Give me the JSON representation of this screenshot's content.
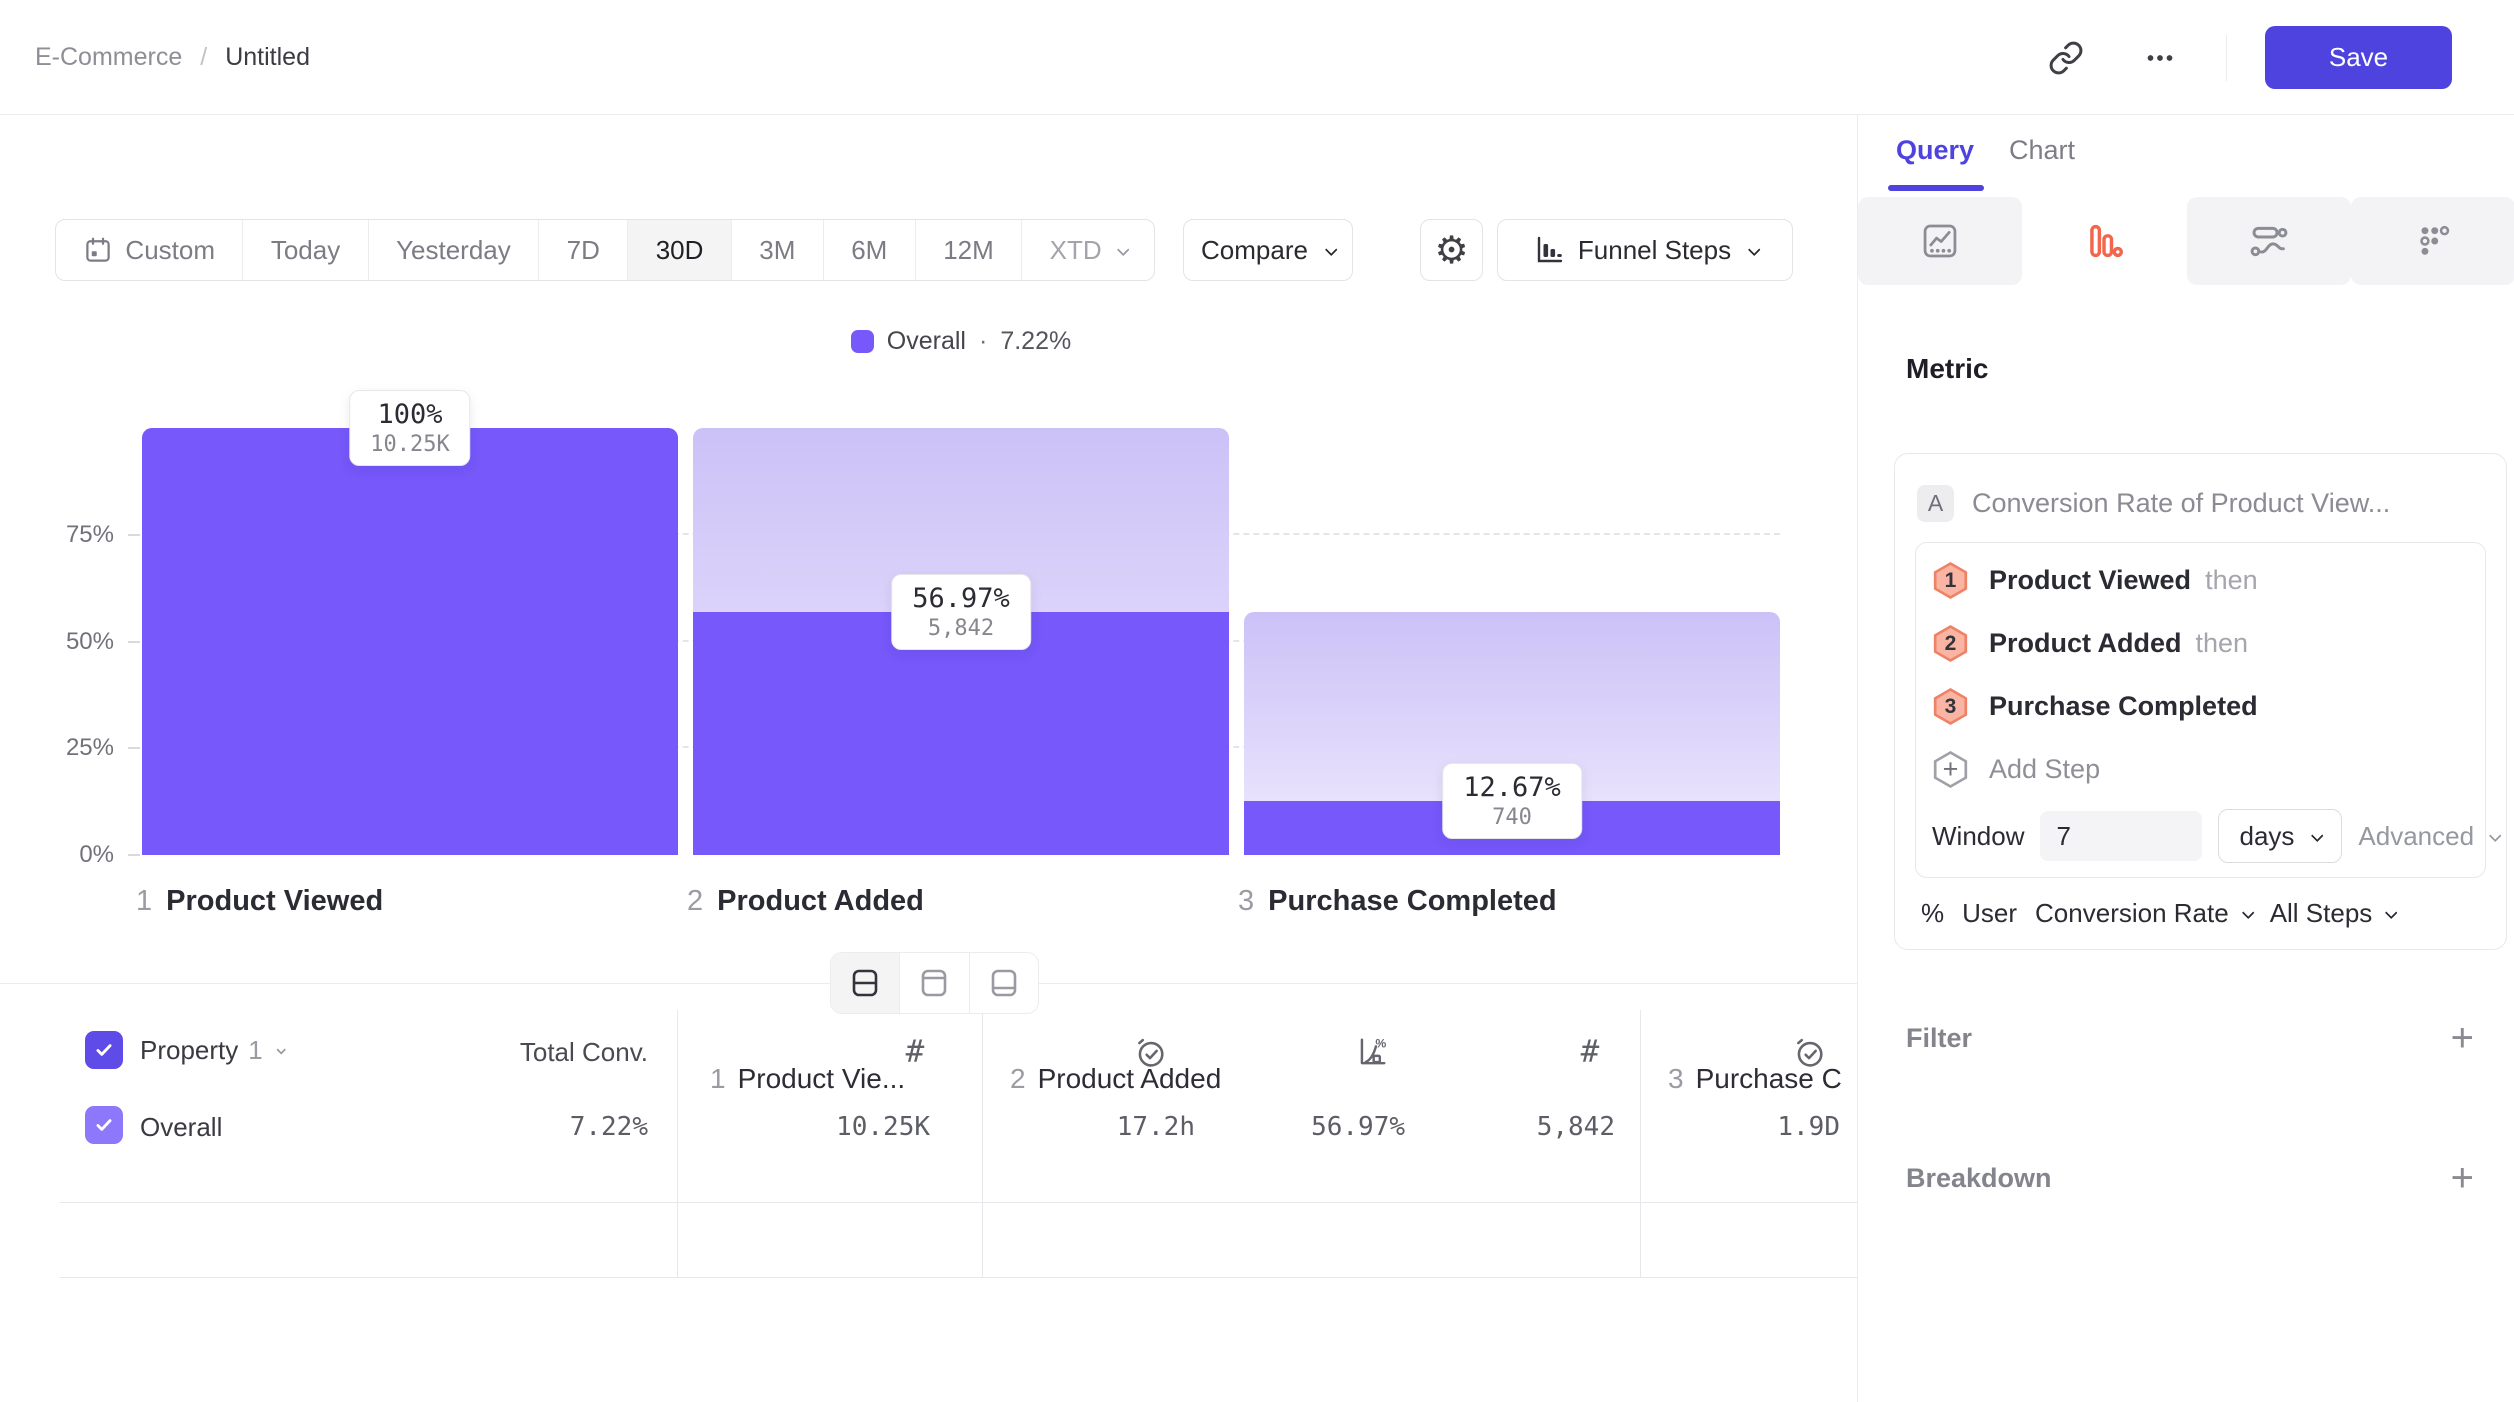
{
  "colors": {
    "bar": "#7658FB",
    "ghost-top": "#CCC1F7",
    "ghost-bottom": "#EFEBFE",
    "brand": "#4F43E0",
    "orange": "#F2664B",
    "hex-fill": "#F9B4A3",
    "hex-border": "#EE8166",
    "check-dark": "#5F4BE8",
    "check-light": "#8D77FA"
  },
  "header": {
    "breadcrumb_root": "E-Commerce",
    "breadcrumb_sep": "/",
    "breadcrumb_current": "Untitled",
    "save_label": "Save"
  },
  "toolbar": {
    "date_ranges": [
      "Custom",
      "Today",
      "Yesterday",
      "7D",
      "30D",
      "3M",
      "6M",
      "12M",
      "XTD"
    ],
    "active_range": "30D",
    "compare_label": "Compare",
    "chart_type_label": "Funnel Steps"
  },
  "legend": {
    "name": "Overall",
    "dot": "·",
    "value": "7.22%"
  },
  "chart": {
    "y_ticks": [
      "0%",
      "25%",
      "50%",
      "75%"
    ],
    "steps": [
      {
        "index": "1",
        "name": "Product Viewed",
        "pct": 100,
        "pct_label": "100%",
        "count_label": "10.25K"
      },
      {
        "index": "2",
        "name": "Product Added",
        "pct": 56.97,
        "pct_label": "56.97%",
        "count_label": "5,842"
      },
      {
        "index": "3",
        "name": "Purchase Completed",
        "pct": 12.67,
        "pct_label": "12.67%",
        "count_label": "740"
      }
    ]
  },
  "chart_data": {
    "type": "bar",
    "subtype": "funnel-steps",
    "categories": [
      "Product Viewed",
      "Product Added",
      "Purchase Completed"
    ],
    "values": [
      100,
      56.97,
      12.67
    ],
    "counts": [
      "10.25K",
      "5,842",
      "740"
    ],
    "series_name": "Overall",
    "overall_conversion": "7.22%",
    "ylabel": "",
    "yticks_pct": [
      0,
      25,
      50,
      75
    ],
    "ylim": [
      0,
      100
    ],
    "grid": "dashed"
  },
  "panel": {
    "tab_query": "Query",
    "tab_chart": "Chart",
    "metric_heading": "Metric",
    "metric": {
      "badge": "A",
      "title": "Conversion Rate of Product View...",
      "steps": [
        {
          "num": "1",
          "name": "Product Viewed",
          "suffix": "then"
        },
        {
          "num": "2",
          "name": "Product Added",
          "suffix": "then"
        },
        {
          "num": "3",
          "name": "Purchase Completed",
          "suffix": ""
        }
      ],
      "add_icon": "+",
      "add_step_label": "Add Step",
      "window_label": "Window",
      "window_value": "7",
      "window_unit": "days",
      "advanced_label": "Advanced",
      "measure_symbol": "%",
      "measure_entity": "User",
      "measure_metric": "Conversion Rate",
      "measure_scope": "All Steps"
    },
    "filter_label": "Filter",
    "breakdown_label": "Breakdown",
    "plus": "+"
  },
  "table": {
    "property_label": "Property",
    "property_index": "1",
    "total_conv_label": "Total Conv.",
    "groups": [
      {
        "index": "1",
        "name": "Product Vie..."
      },
      {
        "index": "2",
        "name": "Product Added"
      },
      {
        "index": "3",
        "name": "Purchase C"
      }
    ],
    "row": {
      "name": "Overall",
      "total": "7.22%",
      "values": [
        "10.25K",
        "17.2h",
        "56.97%",
        "5,842",
        "1.9D"
      ]
    }
  },
  "icons": {
    "settings": "⚙"
  }
}
